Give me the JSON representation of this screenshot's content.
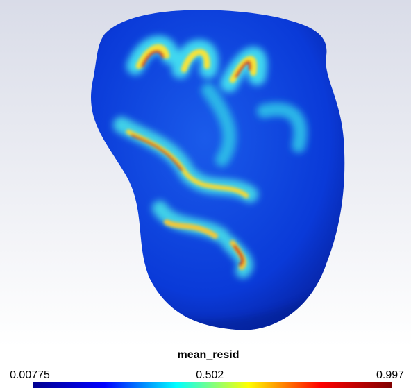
{
  "colorbar": {
    "title": "mean_resid",
    "lim": [
      0.00775,
      0.997
    ],
    "ticks": [
      0.00775,
      0.502,
      0.997
    ],
    "colormap": "jet"
  }
}
